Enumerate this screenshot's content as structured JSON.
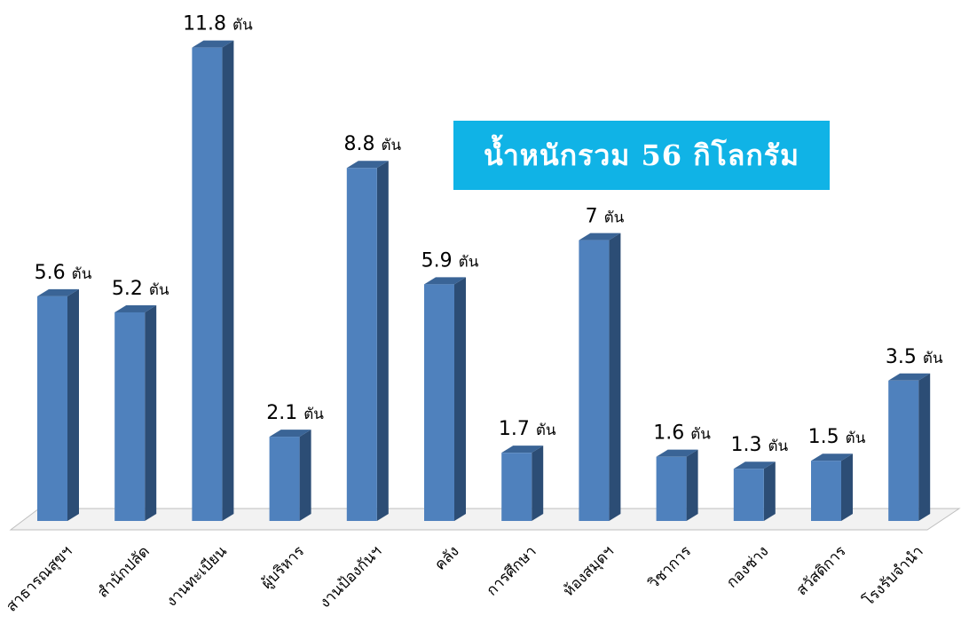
{
  "chart_data": {
    "type": "bar",
    "categories": [
      "สาธารณสุขฯ",
      "สำนักปลัด",
      "งานทะเบียน",
      "ผู้บริหาร",
      "งานป้องกันฯ",
      "คลัง",
      "การศึกษา",
      "ห้องสมุดฯ",
      "วิชาการ",
      "กองช่าง",
      "สวัสดิการ",
      "โรงรับจำนำ"
    ],
    "values": [
      5.6,
      5.2,
      11.8,
      2.1,
      8.8,
      5.9,
      1.7,
      7,
      1.6,
      1.3,
      1.5,
      3.5
    ],
    "data_labels": [
      "5.6",
      "5.2",
      "11.8",
      "2.1",
      "8.8",
      "5.9",
      "1.7",
      "7",
      "1.6",
      "1.3",
      "1.5",
      "3.5"
    ],
    "unit": "ตัน",
    "title": "",
    "xlabel": "",
    "ylabel": "",
    "ylim": [
      0,
      12
    ],
    "grid": false,
    "bar_color": "#4f81bd",
    "bar_side_color": "#2c4d75",
    "bar_top_color": "#3a6496"
  },
  "total_box": {
    "text": "น้ำหนักรวม  56  กิโลกรัม",
    "color": "#10b3e6"
  }
}
